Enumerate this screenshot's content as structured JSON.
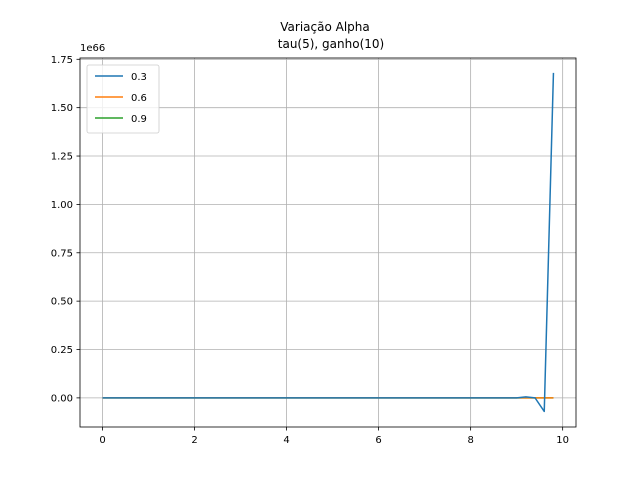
{
  "chart_data": {
    "type": "line",
    "title_line1": "Variação Alpha",
    "title_line2": "tau(5), ganho(10)",
    "xlabel": "",
    "ylabel": "",
    "y_offset_label": "1e66",
    "xlim": [
      -0.49,
      10.29
    ],
    "ylim": [
      -0.1505,
      1.7567
    ],
    "x_ticks": [
      0,
      2,
      4,
      6,
      8,
      10
    ],
    "y_ticks": [
      0.0,
      0.25,
      0.5,
      0.75,
      1.0,
      1.25,
      1.5,
      1.75
    ],
    "y_tick_labels": [
      "0.00",
      "0.25",
      "0.50",
      "0.75",
      "1.00",
      "1.25",
      "1.50",
      "1.75"
    ],
    "grid": true,
    "legend_position": "top-left",
    "series": [
      {
        "name": "0.3",
        "color": "#1f77b4",
        "x": [
          0,
          1,
          2,
          3,
          4,
          5,
          6,
          7,
          8,
          9,
          9.2,
          9.4,
          9.6,
          9.8
        ],
        "y": [
          0,
          0,
          0,
          0,
          0,
          0,
          0,
          0,
          0,
          0,
          0.005,
          0.0,
          -0.07,
          1.68
        ]
      },
      {
        "name": "0.6",
        "color": "#ff7f0e",
        "x": [
          0,
          1,
          2,
          3,
          4,
          5,
          6,
          7,
          8,
          9,
          9.8
        ],
        "y": [
          0,
          0,
          0,
          0,
          0,
          0,
          0,
          0,
          0,
          0,
          0
        ]
      },
      {
        "name": "0.9",
        "color": "#2ca02c",
        "x": [
          0,
          1,
          2,
          3,
          4,
          5,
          6,
          7,
          8,
          9,
          9.8
        ],
        "y": [
          0,
          0,
          0,
          0,
          0,
          0,
          0,
          0,
          0,
          0,
          0
        ]
      }
    ]
  }
}
